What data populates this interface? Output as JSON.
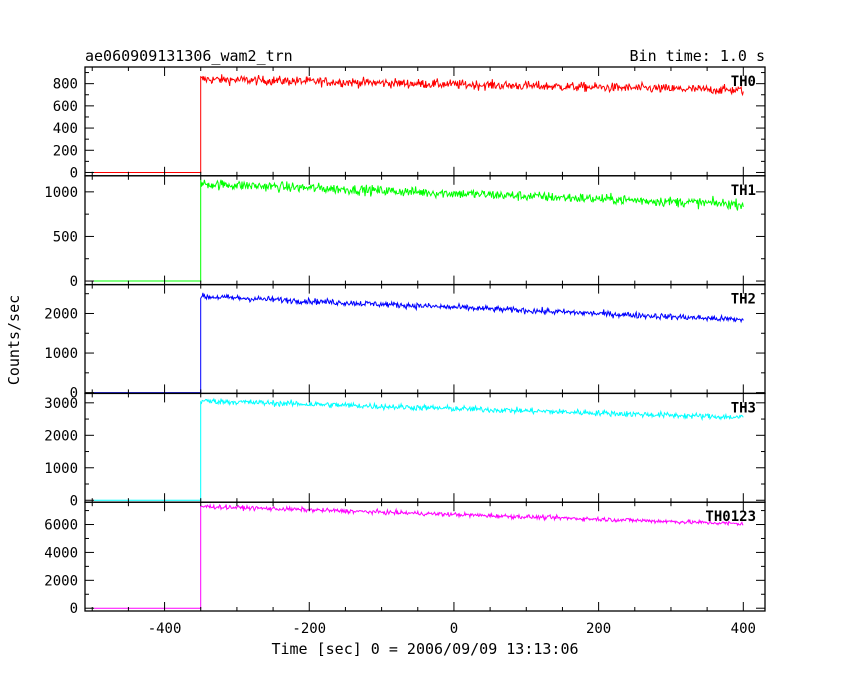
{
  "chart_data": {
    "type": "line",
    "title": "ae060909131306_wam2_trn",
    "bin_time": "Bin time: 1.0 s",
    "xlabel": "Time [sec] 0 = 2006/09/09 13:13:06",
    "ylabel": "Counts/sec",
    "xlim": [
      -510,
      430
    ],
    "x_ticks": [
      -400,
      -200,
      0,
      200,
      400
    ],
    "trigger_time": -350,
    "pre_trigger_value": 0,
    "data_end": 400,
    "series": [
      {
        "name": "TH0",
        "color": "#ff0000",
        "ylim": [
          -30,
          950
        ],
        "y_ticks": [
          0,
          200,
          400,
          600,
          800
        ],
        "start_value": 840,
        "end_value": 740,
        "noise": 30
      },
      {
        "name": "TH1",
        "color": "#00ff00",
        "ylim": [
          -40,
          1180
        ],
        "y_ticks": [
          0,
          500,
          1000
        ],
        "start_value": 1090,
        "end_value": 860,
        "noise": 40
      },
      {
        "name": "TH2",
        "color": "#0000ff",
        "ylim": [
          -20,
          2730
        ],
        "y_ticks": [
          0,
          1000,
          2000
        ],
        "start_value": 2430,
        "end_value": 1840,
        "noise": 55
      },
      {
        "name": "TH3",
        "color": "#00ffff",
        "ylim": [
          -60,
          3290
        ],
        "y_ticks": [
          0,
          1000,
          2000,
          3000
        ],
        "start_value": 3060,
        "end_value": 2550,
        "noise": 65
      },
      {
        "name": "TH0123",
        "color": "#ff00ff",
        "ylim": [
          -200,
          7600
        ],
        "y_ticks": [
          0,
          2000,
          4000,
          6000
        ],
        "start_value": 7300,
        "end_value": 6050,
        "noise": 110
      }
    ]
  }
}
